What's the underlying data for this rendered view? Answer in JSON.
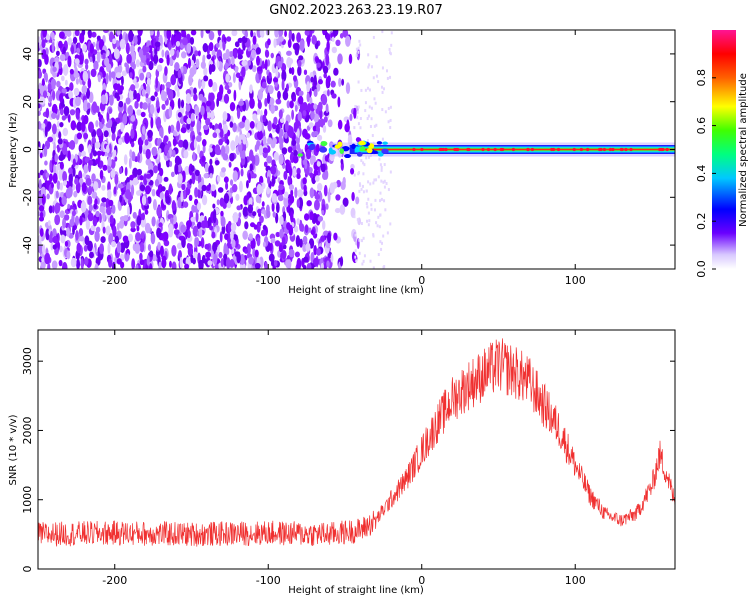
{
  "title": "GN02.2023.263.23.19.R07",
  "chart_data": [
    {
      "type": "heatmap",
      "xlabel": "Height of straight line (km)",
      "ylabel": "Frequency (Hz)",
      "xlim": [
        -250,
        165
      ],
      "ylim": [
        -50,
        50
      ],
      "x_ticks": [
        -200,
        -100,
        0,
        100
      ],
      "y_ticks": [
        -40,
        -20,
        0,
        20,
        40
      ],
      "colorbar": {
        "label": "Normalized spectral amplitude",
        "range": [
          0,
          1
        ],
        "ticks": [
          0.0,
          0.2,
          0.4,
          0.6,
          0.8
        ],
        "colors": [
          "#ffffff",
          "#6a00ff",
          "#0000ff",
          "#00ffff",
          "#00ff00",
          "#ffff00",
          "#ff0000",
          "#ff1493"
        ]
      },
      "features": {
        "noise_region_x": [
          -250,
          -40
        ],
        "noise_color": "#7f00ff",
        "signal_band_x": [
          -60,
          165
        ],
        "signal_frequency_hz": 0
      }
    },
    {
      "type": "line",
      "xlabel": "Height of straight line (km)",
      "ylabel": "SNR (10 * v/v)",
      "xlim": [
        -250,
        165
      ],
      "ylim": [
        0,
        3450
      ],
      "x_ticks": [
        -200,
        -100,
        0,
        100
      ],
      "y_ticks": [
        0,
        1000,
        2000,
        3000
      ],
      "color": "#f03030",
      "x": [
        -250,
        -200,
        -150,
        -100,
        -60,
        -40,
        -30,
        -20,
        -10,
        0,
        10,
        20,
        30,
        40,
        50,
        60,
        70,
        80,
        90,
        100,
        110,
        120,
        130,
        140,
        150,
        155,
        160,
        165
      ],
      "values": [
        500,
        520,
        500,
        520,
        500,
        560,
        700,
        1000,
        1300,
        1700,
        2100,
        2450,
        2650,
        2800,
        2950,
        2850,
        2700,
        2350,
        2000,
        1500,
        1050,
        780,
        700,
        800,
        1200,
        1650,
        1350,
        950
      ]
    }
  ]
}
